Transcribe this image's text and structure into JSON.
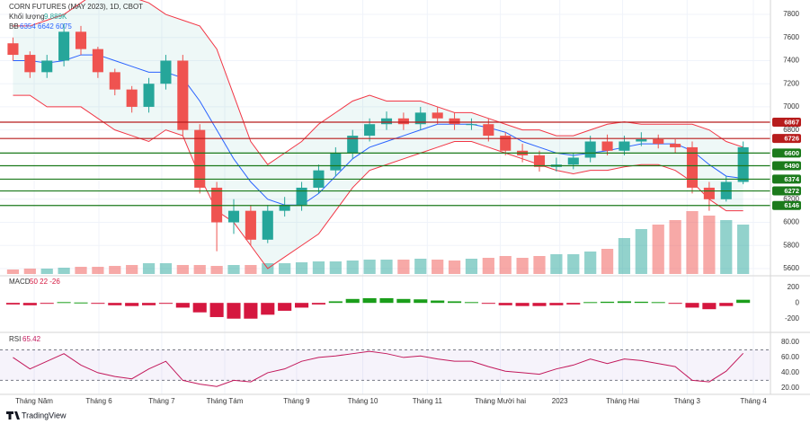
{
  "chart_data": {
    "type": "candlestick",
    "title": "CORN FUTURES (MAY 2023), 1D, CBOT",
    "volume_label": "Khối lượng",
    "volume_readout": "9.889K",
    "bb_label": "BB",
    "bb_readout": "6354 6642 6075",
    "xlim": [
      -0.5,
      44.5
    ],
    "xticks": [
      {
        "value": 1.25,
        "label": "Tháng Năm"
      },
      {
        "value": 5.06,
        "label": "Tháng 6"
      },
      {
        "value": 8.76,
        "label": "Tháng 7"
      },
      {
        "value": 12.47,
        "label": "Tháng Tám"
      },
      {
        "value": 16.7,
        "label": "Tháng 9"
      },
      {
        "value": 20.6,
        "label": "Tháng 10"
      },
      {
        "value": 24.4,
        "label": "Tháng 11"
      },
      {
        "value": 28.7,
        "label": "Tháng Mười hai"
      },
      {
        "value": 32.2,
        "label": "2023"
      },
      {
        "value": 35.9,
        "label": "Tháng Hai"
      },
      {
        "value": 39.7,
        "label": "Tháng 3"
      },
      {
        "value": 43.6,
        "label": "Tháng 4"
      }
    ],
    "ylim": [
      5553,
      7886
    ],
    "yticks": [
      5600,
      5800,
      6000,
      6200,
      6800,
      7000,
      7200,
      7400,
      7600,
      7800
    ],
    "grid": true,
    "up_color": "#26a69a",
    "down_color": "#ef5350",
    "open": [
      7550,
      7450,
      7300,
      7400,
      7650,
      7500,
      7300,
      7150,
      7000,
      7200,
      7400,
      6800,
      6300,
      6000,
      6100,
      5850,
      6100,
      6150,
      6300,
      6450,
      6600,
      6750,
      6850,
      6900,
      6850,
      6950,
      6900,
      6850,
      6850,
      6750,
      6620,
      6580,
      6480,
      6500,
      6560,
      6700,
      6620,
      6700,
      6720,
      6680,
      6650,
      6300,
      6200,
      6350
    ],
    "high": [
      7600,
      7480,
      7450,
      7720,
      7700,
      7520,
      7330,
      7180,
      7250,
      7450,
      7450,
      6850,
      6350,
      6200,
      6150,
      6150,
      6220,
      6350,
      6500,
      6650,
      6800,
      6900,
      6960,
      6950,
      7000,
      7000,
      6950,
      6900,
      6900,
      6780,
      6680,
      6620,
      6560,
      6600,
      6750,
      6760,
      6750,
      6780,
      6760,
      6720,
      6700,
      6350,
      6400,
      6700
    ],
    "low": [
      7400,
      7250,
      7250,
      7350,
      7450,
      7250,
      7100,
      6950,
      6950,
      7150,
      6750,
      6250,
      5750,
      5900,
      5800,
      5820,
      6050,
      6100,
      6250,
      6400,
      6550,
      6700,
      6800,
      6800,
      6800,
      6850,
      6800,
      6800,
      6700,
      6580,
      6520,
      6440,
      6440,
      6460,
      6520,
      6580,
      6580,
      6660,
      6640,
      6600,
      6250,
      6100,
      6180,
      6330
    ],
    "close": [
      7450,
      7300,
      7400,
      7650,
      7500,
      7300,
      7150,
      7000,
      7200,
      7400,
      6800,
      6300,
      6000,
      6100,
      5850,
      6100,
      6150,
      6300,
      6450,
      6600,
      6750,
      6850,
      6900,
      6850,
      6950,
      6900,
      6850,
      6850,
      6750,
      6620,
      6580,
      6480,
      6500,
      6560,
      6700,
      6620,
      6700,
      6720,
      6680,
      6650,
      6300,
      6200,
      6350,
      6650
    ],
    "bb_upper": [
      7700,
      7700,
      7750,
      7800,
      7900,
      8000,
      8000,
      7950,
      7900,
      7800,
      7750,
      7700,
      7500,
      7100,
      6700,
      6500,
      6600,
      6700,
      6850,
      6950,
      7050,
      7100,
      7050,
      7050,
      7050,
      7000,
      6950,
      6950,
      6900,
      6850,
      6800,
      6800,
      6750,
      6750,
      6800,
      6850,
      6870,
      6850,
      6850,
      6850,
      6850,
      6800,
      6700,
      6650
    ],
    "bb_mid": [
      7400,
      7400,
      7380,
      7400,
      7450,
      7450,
      7400,
      7350,
      7300,
      7300,
      7250,
      7050,
      6800,
      6550,
      6350,
      6200,
      6150,
      6150,
      6250,
      6400,
      6550,
      6650,
      6700,
      6750,
      6800,
      6850,
      6850,
      6850,
      6820,
      6780,
      6700,
      6650,
      6600,
      6580,
      6600,
      6620,
      6650,
      6680,
      6680,
      6680,
      6620,
      6500,
      6400,
      6380
    ],
    "bb_lower": [
      7100,
      7100,
      7000,
      7000,
      7000,
      6900,
      6800,
      6750,
      6700,
      6800,
      6750,
      6400,
      6100,
      6000,
      5800,
      5600,
      5700,
      5800,
      5900,
      6100,
      6300,
      6450,
      6500,
      6550,
      6600,
      6650,
      6700,
      6700,
      6650,
      6600,
      6550,
      6500,
      6450,
      6420,
      6450,
      6450,
      6480,
      6500,
      6500,
      6450,
      6350,
      6200,
      6100,
      6100
    ],
    "bb_color": "#f23645",
    "bb_mid_color": "#2962ff",
    "volume_ylim": [
      0,
      100
    ],
    "volume": [
      5,
      6,
      6,
      7,
      8,
      8,
      9,
      10,
      12,
      12,
      10,
      10,
      9,
      10,
      10,
      12,
      12,
      13,
      14,
      14,
      15,
      16,
      16,
      16,
      17,
      16,
      15,
      17,
      18,
      20,
      18,
      20,
      22,
      22,
      25,
      28,
      40,
      50,
      55,
      60,
      70,
      65,
      60,
      55
    ],
    "levels": [
      {
        "value": 6867,
        "color": "#b71c1c"
      },
      {
        "value": 6726,
        "color": "#b71c1c"
      },
      {
        "value": 6600,
        "color": "#1b7a1b"
      },
      {
        "value": 6490,
        "color": "#1b7a1b"
      },
      {
        "value": 6374,
        "color": "#1b7a1b"
      },
      {
        "value": 6272,
        "color": "#1b7a1b"
      },
      {
        "value": 6146,
        "color": "#1b7a1b"
      }
    ],
    "macd": {
      "label": "MACD",
      "readout": "50 22 -26",
      "ylim": [
        -340,
        310
      ],
      "yticks": [
        -200,
        0,
        200
      ],
      "histogram": [
        -20,
        -30,
        -10,
        10,
        5,
        -10,
        -30,
        -40,
        -30,
        -10,
        -60,
        -120,
        -180,
        -200,
        -200,
        -150,
        -100,
        -60,
        -20,
        20,
        50,
        60,
        60,
        50,
        45,
        30,
        20,
        10,
        -10,
        -30,
        -40,
        -40,
        -30,
        -20,
        10,
        15,
        20,
        15,
        10,
        -5,
        -60,
        -80,
        -40,
        40
      ],
      "up_color": "#1b9e1b",
      "down_color": "#d5173f"
    },
    "rsi": {
      "label": "RSI",
      "readout": "65.42",
      "ylim": [
        14,
        87
      ],
      "yticks": [
        {
          "value": 20,
          "label": "20.00"
        },
        {
          "value": 40,
          "label": "40.00"
        },
        {
          "value": 60,
          "label": "60.00"
        },
        {
          "value": 80,
          "label": "80.00"
        }
      ],
      "bands": [
        30,
        70
      ],
      "color": "#c2185b",
      "values": [
        60,
        45,
        55,
        65,
        50,
        40,
        35,
        32,
        45,
        55,
        30,
        25,
        22,
        30,
        28,
        40,
        45,
        55,
        60,
        62,
        65,
        68,
        65,
        60,
        62,
        58,
        55,
        55,
        48,
        42,
        40,
        38,
        45,
        50,
        58,
        52,
        58,
        56,
        52,
        48,
        30,
        28,
        42,
        65.42
      ]
    },
    "brand": "TradingView"
  }
}
